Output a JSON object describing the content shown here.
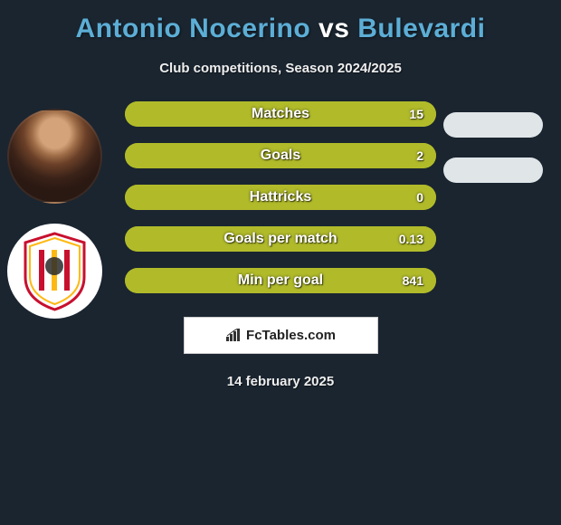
{
  "title": "Antonio Nocerino vs Bulevardi",
  "subtitle": "Club competitions, Season 2024/2025",
  "date": "14 february 2025",
  "badge_text": "FcTables.com",
  "colors": {
    "background": "#1a2530",
    "bar_bg": "#828c1f",
    "bar_fill": "#b1bb2a",
    "pill_bg": "#e0e5e8",
    "title_accent": "#5caed6"
  },
  "bars": [
    {
      "label": "Matches",
      "value": "15",
      "fill_pct": 100
    },
    {
      "label": "Goals",
      "value": "2",
      "fill_pct": 100
    },
    {
      "label": "Hattricks",
      "value": "0",
      "fill_pct": 100
    },
    {
      "label": "Goals per match",
      "value": "0.13",
      "fill_pct": 100
    },
    {
      "label": "Min per goal",
      "value": "841",
      "fill_pct": 100
    }
  ],
  "pills_count": 2
}
